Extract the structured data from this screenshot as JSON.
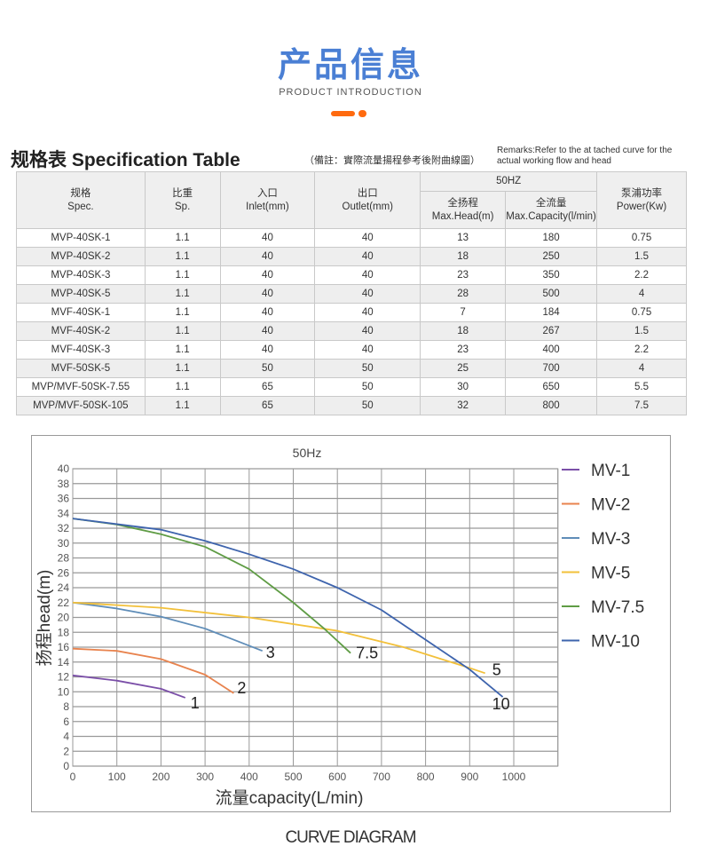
{
  "header": {
    "title_cn": "产品信息",
    "title_en": "PRODUCT INTRODUCTION"
  },
  "spec": {
    "title": "规格表 Specification Table",
    "note_cn": "（備註：實際流量揚程參考後附曲線圖）",
    "note_en": "Remarks:Refer to the at tached curve for the actual working flow and head",
    "freq_header": "50HZ",
    "columns": [
      {
        "cn": "规格",
        "en": "Spec."
      },
      {
        "cn": "比重",
        "en": "Sp."
      },
      {
        "cn": "入口",
        "en": "Inlet(mm)"
      },
      {
        "cn": "出口",
        "en": "Outlet(mm)"
      },
      {
        "cn": "全扬程",
        "en": "Max.Head(m)"
      },
      {
        "cn": "全流量",
        "en": "Max.Capacity(l/min)"
      },
      {
        "cn": "泵浦功率",
        "en": "Power(Kw)"
      }
    ],
    "rows": [
      [
        "MVP-40SK-1",
        "1.1",
        "40",
        "40",
        "13",
        "180",
        "0.75"
      ],
      [
        "MVP-40SK-2",
        "1.1",
        "40",
        "40",
        "18",
        "250",
        "1.5"
      ],
      [
        "MVP-40SK-3",
        "1.1",
        "40",
        "40",
        "23",
        "350",
        "2.2"
      ],
      [
        "MVP-40SK-5",
        "1.1",
        "40",
        "40",
        "28",
        "500",
        "4"
      ],
      [
        "MVF-40SK-1",
        "1.1",
        "40",
        "40",
        "7",
        "184",
        "0.75"
      ],
      [
        "MVF-40SK-2",
        "1.1",
        "40",
        "40",
        "18",
        "267",
        "1.5"
      ],
      [
        "MVF-40SK-3",
        "1.1",
        "40",
        "40",
        "23",
        "400",
        "2.2"
      ],
      [
        "MVF-50SK-5",
        "1.1",
        "50",
        "50",
        "25",
        "700",
        "4"
      ],
      [
        "MVP/MVF-50SK-7.55",
        "1.1",
        "65",
        "50",
        "30",
        "650",
        "5.5"
      ],
      [
        "MVP/MVF-50SK-105",
        "1.1",
        "65",
        "50",
        "32",
        "800",
        "7.5"
      ]
    ]
  },
  "chart_data": {
    "type": "line",
    "title": "50Hz",
    "xlabel": "流量capacity(L/min)",
    "ylabel": "扬程head(m)",
    "xlim": [
      0,
      1100
    ],
    "ylim": [
      0,
      40
    ],
    "xticks": [
      0,
      100,
      200,
      300,
      400,
      500,
      600,
      700,
      800,
      900,
      1000
    ],
    "yticks": [
      0,
      2,
      4,
      6,
      8,
      10,
      12,
      14,
      16,
      18,
      20,
      22,
      24,
      26,
      28,
      30,
      32,
      34,
      36,
      38,
      40
    ],
    "grid": true,
    "legend": "right",
    "series": [
      {
        "name": "MV-1",
        "end_label": "1",
        "color": "#7b4fa8",
        "x": [
          0,
          100,
          200,
          255
        ],
        "y": [
          12.2,
          11.5,
          10.4,
          9.2
        ]
      },
      {
        "name": "MV-2",
        "end_label": "2",
        "color": "#e8834e",
        "x": [
          0,
          100,
          200,
          300,
          365
        ],
        "y": [
          15.8,
          15.5,
          14.4,
          12.3,
          9.8
        ]
      },
      {
        "name": "MV-3",
        "end_label": "3",
        "color": "#5f8db8",
        "x": [
          0,
          100,
          200,
          300,
          430
        ],
        "y": [
          22,
          21.2,
          20.1,
          18.5,
          15.5
        ]
      },
      {
        "name": "MV-5",
        "end_label": "5",
        "color": "#f2c03a",
        "x": [
          0,
          200,
          400,
          600,
          750,
          900,
          935
        ],
        "y": [
          22,
          21.3,
          20,
          18.2,
          16,
          13.2,
          12.5
        ]
      },
      {
        "name": "MV-7.5",
        "end_label": "7.5",
        "color": "#5f9c45",
        "x": [
          0,
          100,
          200,
          300,
          400,
          500,
          570,
          630
        ],
        "y": [
          33.3,
          32.5,
          31.2,
          29.5,
          26.5,
          22,
          18.5,
          15.2
        ]
      },
      {
        "name": "MV-10",
        "end_label": "10",
        "color": "#3e64ad",
        "x": [
          0,
          200,
          300,
          400,
          500,
          600,
          700,
          800,
          900,
          975
        ],
        "y": [
          33.3,
          31.8,
          30.3,
          28.5,
          26.5,
          24,
          21,
          17,
          13,
          9.3
        ]
      }
    ]
  },
  "footer": {
    "title": "CURVE DIAGRAM"
  }
}
